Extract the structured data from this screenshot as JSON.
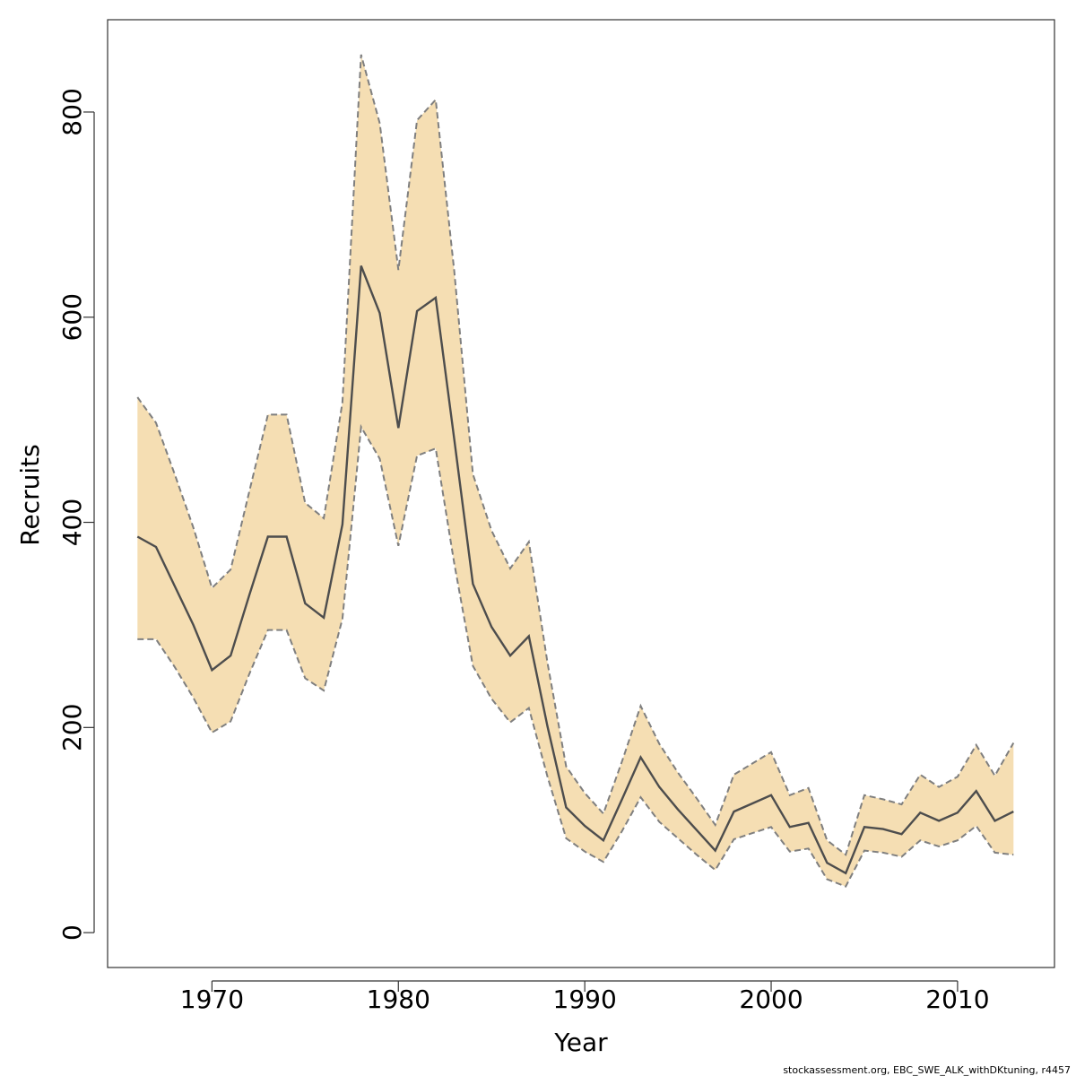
{
  "chart_data": {
    "type": "area",
    "title": "",
    "xlabel": "Year",
    "ylabel": "Recruits",
    "xlim": [
      1964.4,
      2015.2
    ],
    "ylim": [
      -34,
      890
    ],
    "xticks": [
      1970,
      1980,
      1990,
      2000,
      2010
    ],
    "yticks": [
      0,
      200,
      400,
      600,
      800
    ],
    "grid": false,
    "legend": "none",
    "x": [
      1966,
      1967,
      1968,
      1969,
      1970,
      1971,
      1972,
      1973,
      1974,
      1975,
      1976,
      1977,
      1978,
      1979,
      1980,
      1981,
      1982,
      1983,
      1984,
      1985,
      1986,
      1987,
      1988,
      1989,
      1990,
      1991,
      1992,
      1993,
      1994,
      1995,
      1996,
      1997,
      1998,
      1999,
      2000,
      2001,
      2002,
      2003,
      2004,
      2005,
      2006,
      2007,
      2008,
      2009,
      2010,
      2011,
      2012,
      2013
    ],
    "series": [
      {
        "role": "estimate",
        "values": [
          386,
          376,
          338,
          300,
          256,
          270,
          329,
          386,
          386,
          321,
          307,
          398,
          650,
          604,
          492,
          606,
          619,
          481,
          340,
          298,
          270,
          289,
          201,
          122,
          104,
          90,
          130,
          171,
          142,
          120,
          100,
          80,
          118,
          126,
          134,
          103,
          107,
          68,
          58,
          103,
          101,
          96,
          117,
          109,
          117,
          138,
          109,
          118
        ]
      },
      {
        "role": "upper",
        "values": [
          522,
          497,
          447,
          395,
          336,
          354,
          430,
          505,
          505,
          419,
          404,
          517,
          856,
          789,
          646,
          792,
          812,
          645,
          447,
          392,
          355,
          381,
          263,
          162,
          136,
          116,
          167,
          221,
          184,
          156,
          131,
          105,
          154,
          165,
          176,
          134,
          141,
          90,
          76,
          134,
          130,
          125,
          154,
          142,
          152,
          183,
          153,
          185
        ]
      },
      {
        "role": "lower",
        "values": [
          286,
          286,
          259,
          229,
          195,
          206,
          252,
          295,
          295,
          248,
          236,
          306,
          493,
          462,
          377,
          465,
          472,
          360,
          260,
          228,
          205,
          219,
          152,
          92,
          79,
          69,
          99,
          132,
          108,
          92,
          76,
          61,
          91,
          97,
          103,
          79,
          82,
          52,
          45,
          80,
          78,
          74,
          90,
          84,
          90,
          104,
          78,
          76
        ]
      }
    ],
    "colors": {
      "band_fill": "#f5deb3",
      "band_border": "#7f7f7f",
      "line": "#4d4d4d",
      "axis": "#333333",
      "frame": "#333333"
    }
  },
  "footer": "stockassessment.org, EBC_SWE_ALK_withDKtuning, r4457"
}
